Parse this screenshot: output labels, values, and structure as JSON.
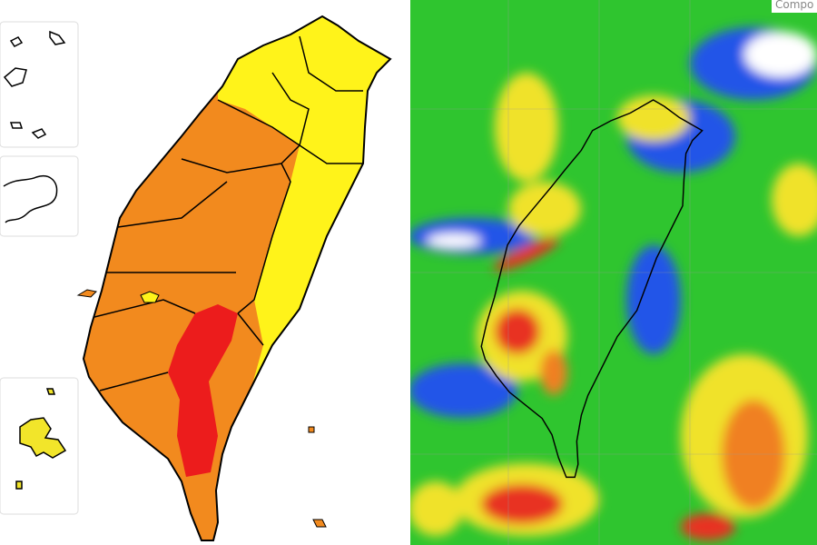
{
  "radar": {
    "label": "Compo"
  }
}
